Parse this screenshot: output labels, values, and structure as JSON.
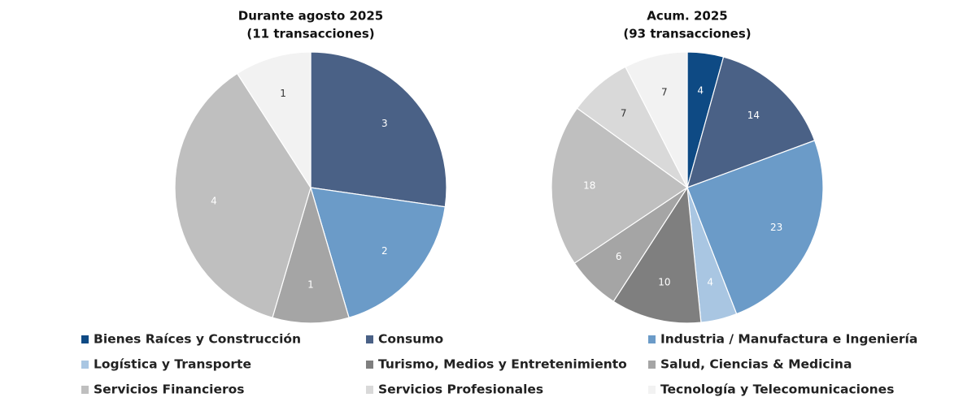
{
  "chart_data": {
    "type": "pie",
    "categories": [
      "Bienes Raíces y Construcción",
      "Consumo",
      "Industria / Manufactura e Ingeniería",
      "Logística y Transporte",
      "Turismo, Medios y Entretenimiento",
      "Salud, Ciencias & Medicina",
      "Servicios Financieros",
      "Servicios Profesionales",
      "Tecnología y Telecomunicaciones"
    ],
    "colors": [
      "#0e4a84",
      "#4a6186",
      "#6b9bc8",
      "#a9c6e2",
      "#7f7f7f",
      "#a5a5a5",
      "#bfbfbf",
      "#d9d9d9",
      "#f2f2f2"
    ],
    "series": [
      {
        "name": "Durante agosto 2025",
        "subtitle": "(11 transacciones)",
        "values": [
          0,
          3,
          2,
          0,
          0,
          1,
          4,
          0,
          1
        ]
      },
      {
        "name": "Acum. 2025",
        "subtitle": "(93 transacciones)",
        "values": [
          4,
          14,
          23,
          4,
          10,
          6,
          18,
          7,
          7
        ]
      }
    ]
  }
}
